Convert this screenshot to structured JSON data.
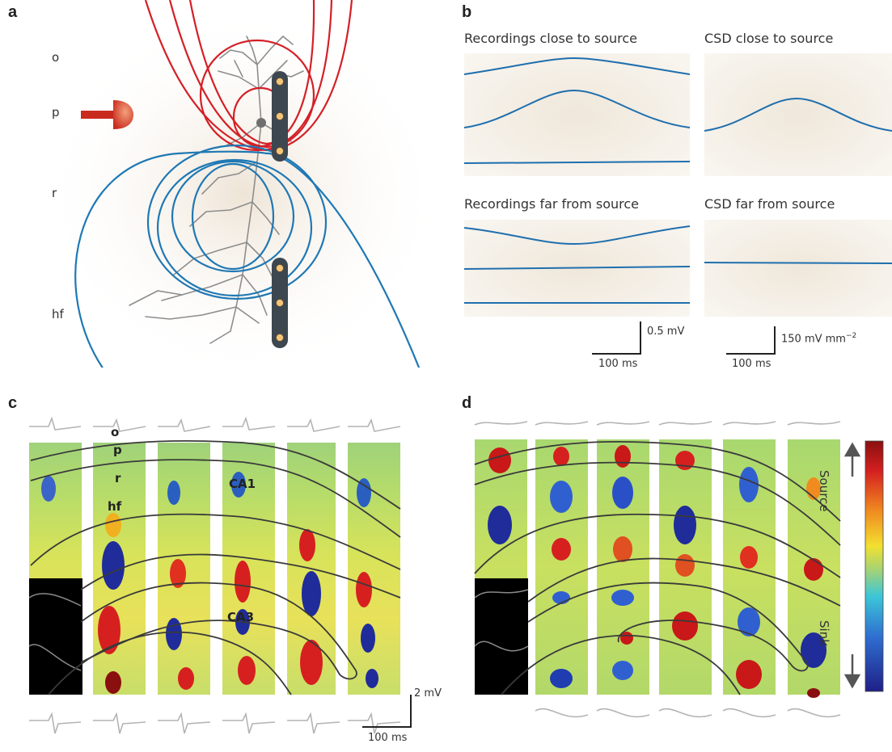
{
  "panels": {
    "a": {
      "letter": "a",
      "layers": [
        "o",
        "p",
        "r",
        "hf"
      ]
    },
    "b": {
      "letter": "b",
      "close_recordings_title": "Recordings close to source",
      "close_csd_title": "CSD close to source",
      "far_recordings_title": "Recordings far from source",
      "far_csd_title": "CSD far from source",
      "voltage_scale": "0.5 mV",
      "csd_scale": "150 mV mm",
      "csd_scale_exp": "−2",
      "time_scale_left": "100 ms",
      "time_scale_right": "100 ms"
    },
    "c": {
      "letter": "c",
      "layers": [
        "o",
        "p",
        "r",
        "hf"
      ],
      "region_ca1": "CA1",
      "region_ca3": "CA3",
      "voltage_scale": "2 mV",
      "time_scale": "100 ms"
    },
    "d": {
      "letter": "d",
      "colorbar_top": "Source",
      "colorbar_bottom": "Sink"
    }
  },
  "colors": {
    "red_field": "#d42027",
    "blue_field": "#1f78b4",
    "trace": "#1f6fae",
    "electrode": "#3c4750"
  }
}
